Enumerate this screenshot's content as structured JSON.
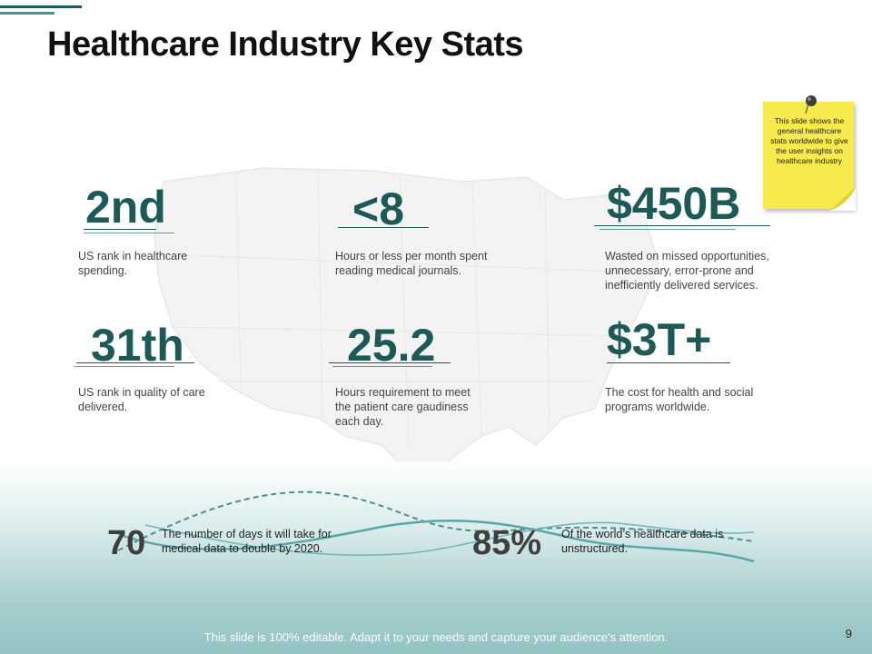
{
  "slide": {
    "title": "Healthcare Industry Key Stats",
    "page_number": "9",
    "footer": "This slide is 100% editable. Adapt it to your needs and capture your audience's attention."
  },
  "note": {
    "text": "This slide shows the general healthcare stats worldwide to give the user insights on healthcare industry"
  },
  "stats": [
    {
      "value": "2nd",
      "description": "US rank in healthcare spending."
    },
    {
      "value": "<8",
      "description": "Hours or less per month spent reading medical journals."
    },
    {
      "value": "$450B",
      "description": "Wasted on missed opportunities, unnecessary, error-prone and inefficiently delivered services."
    },
    {
      "value": "31th",
      "description": "US rank in quality of care delivered."
    },
    {
      "value": "25.2",
      "description": "Hours requirement to meet the patient care gaudiness each day."
    },
    {
      "value": "$3T+",
      "description": "The cost for health and social programs worldwide."
    }
  ],
  "bottom_stats": [
    {
      "value": "70",
      "description": "The number of days it will take for medical data to double by 2020."
    },
    {
      "value": "85%",
      "description": "Of the world’s healthcare data is unstructured."
    }
  ],
  "colors": {
    "accent": "#1d5956",
    "accent_light": "#3a9a9a",
    "note": "#f7ea4c"
  }
}
